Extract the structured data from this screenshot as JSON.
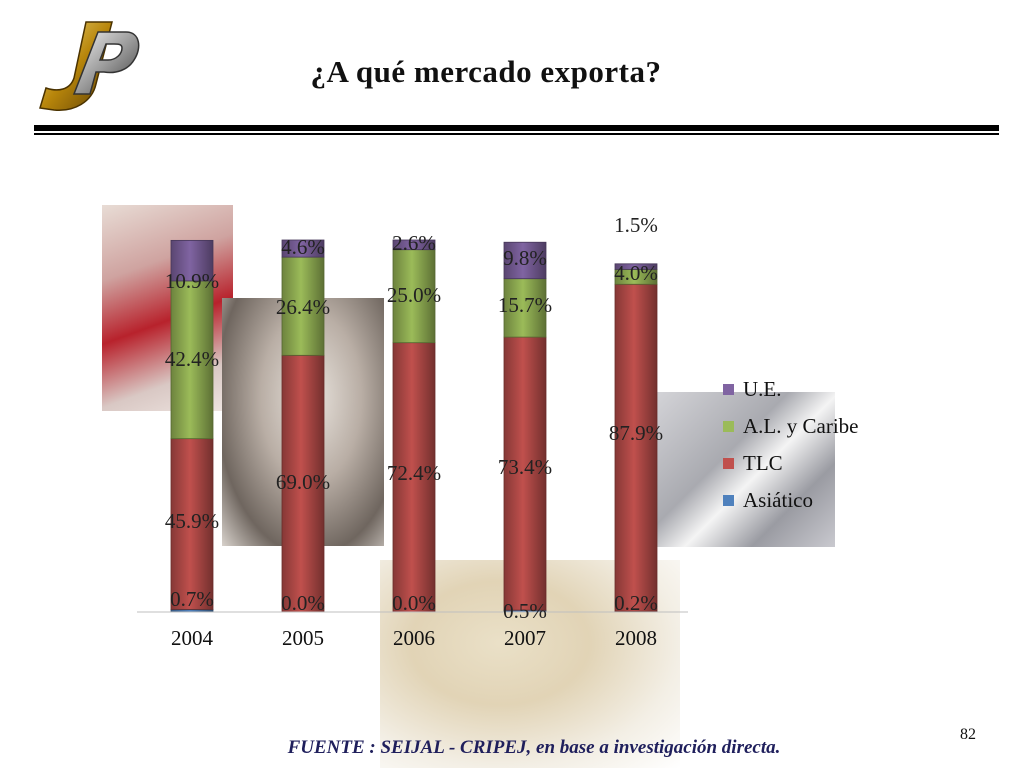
{
  "slide": {
    "title": "¿A qué mercado exporta?",
    "source": "FUENTE :  SEIJAL - CRIPEJ,  en base a investigación directa.",
    "page_number": "82"
  },
  "chart_data": {
    "type": "bar",
    "stacked": true,
    "categories": [
      "2004",
      "2005",
      "2006",
      "2007",
      "2008"
    ],
    "series": [
      {
        "name": "Asiático",
        "color": "#4f81bd",
        "values": [
          0.7,
          0.0,
          0.0,
          0.5,
          0.2
        ],
        "labels": [
          "0.7%",
          "0.0%",
          "0.0%",
          "0.5%",
          "0.2%"
        ]
      },
      {
        "name": "TLC",
        "color": "#c0504d",
        "values": [
          45.9,
          69.0,
          72.4,
          73.4,
          87.9
        ],
        "labels": [
          "45.9%",
          "69.0%",
          "72.4%",
          "73.4%",
          "87.9%"
        ]
      },
      {
        "name": "A.L. y Caribe",
        "color": "#9bbb59",
        "values": [
          42.4,
          26.4,
          25.0,
          15.7,
          4.0
        ],
        "labels": [
          "42.4%",
          "26.4%",
          "25.0%",
          "15.7%",
          "4.0%"
        ]
      },
      {
        "name": "U.E.",
        "color": "#8064a2",
        "values": [
          10.9,
          4.6,
          2.6,
          9.8,
          1.5
        ],
        "labels": [
          "10.9%",
          "4.6%",
          "2.6%",
          "9.8%",
          "1.5%"
        ]
      }
    ],
    "legend_order": [
      "U.E.",
      "A.L. y Caribe",
      "TLC",
      "Asiático"
    ],
    "ylim": [
      0,
      100
    ],
    "legend_position": "right",
    "grid": false
  }
}
